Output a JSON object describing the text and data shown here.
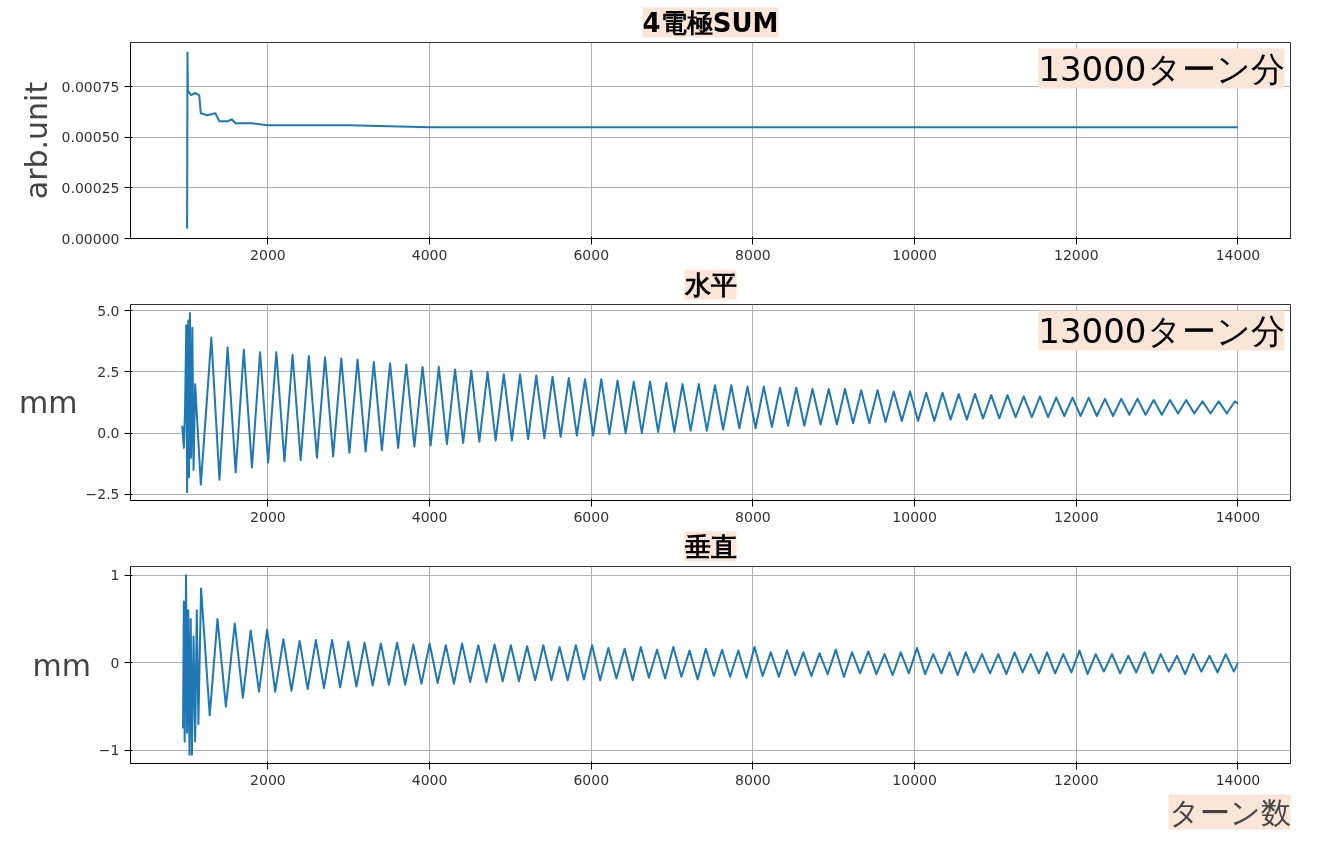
{
  "chart_data": [
    {
      "type": "line",
      "title": "4電極SUM",
      "ylabel": "arb.unit",
      "annotations": [
        "13000ターン分"
      ],
      "grid": true,
      "xlim": [
        300,
        14650
      ],
      "ylim": [
        0,
        0.00097
      ],
      "xticks": [
        2000,
        4000,
        6000,
        8000,
        10000,
        12000,
        14000
      ],
      "yticks": [
        {
          "value": 0,
          "label": "0.00000"
        },
        {
          "value": 0.00025,
          "label": "0.00025"
        },
        {
          "value": 0.0005,
          "label": "0.00050"
        },
        {
          "value": 0.00075,
          "label": "0.00075"
        }
      ],
      "series": [
        {
          "color": "#1f77b4",
          "x": [
            1000,
            1005,
            1010,
            1050,
            1100,
            1150,
            1170,
            1250,
            1350,
            1400,
            1500,
            1550,
            1600,
            1800,
            2000,
            3000,
            4000,
            6000,
            8000,
            10000,
            12000,
            14000
          ],
          "values": [
            5e-05,
            0.00092,
            0.00073,
            0.00071,
            0.00072,
            0.00071,
            0.00062,
            0.00061,
            0.00062,
            0.00058,
            0.00058,
            0.00059,
            0.00057,
            0.00057,
            0.00056,
            0.00056,
            0.00055,
            0.00055,
            0.00055,
            0.00055,
            0.00055,
            0.00055
          ]
        }
      ]
    },
    {
      "type": "line",
      "title": "水平",
      "ylabel": "mm",
      "annotations": [
        "13000ターン分"
      ],
      "grid": true,
      "xlim": [
        300,
        14650
      ],
      "ylim": [
        -2.75,
        5.25
      ],
      "xticks": [
        2000,
        4000,
        6000,
        8000,
        10000,
        12000,
        14000
      ],
      "yticks": [
        {
          "value": -2.5,
          "label": "−2.5"
        },
        {
          "value": 0,
          "label": "0.0"
        },
        {
          "value": 2.5,
          "label": "2.5"
        },
        {
          "value": 5,
          "label": "5.0"
        }
      ],
      "series": [
        {
          "color": "#1f77b4",
          "x": [
            940,
            960,
            975,
            990,
            1000,
            1015,
            1025,
            1035,
            1050,
            1065,
            1080,
            1100,
            1170,
            1300,
            1400,
            1501,
            1601,
            1702,
            1802,
            1903,
            2003,
            2104,
            2204,
            2305,
            2405,
            2506,
            2606,
            2707,
            2807,
            2908,
            3008,
            3109,
            3209,
            3310,
            3410,
            3511,
            3611,
            3712,
            3812,
            3913,
            4013,
            4114,
            4214,
            4315,
            4415,
            4516,
            4616,
            4717,
            4817,
            4918,
            5018,
            5119,
            5219,
            5320,
            5420,
            5521,
            5621,
            5722,
            5822,
            5923,
            6023,
            6124,
            6224,
            6325,
            6425,
            6526,
            6626,
            6727,
            6827,
            6928,
            7028,
            7129,
            7229,
            7330,
            7430,
            7531,
            7631,
            7732,
            7832,
            7933,
            8033,
            8134,
            8234,
            8335,
            8435,
            8536,
            8636,
            8737,
            8837,
            8938,
            9038,
            9139,
            9239,
            9340,
            9440,
            9541,
            9641,
            9742,
            9842,
            9943,
            10043,
            10144,
            10244,
            10345,
            10445,
            10546,
            10646,
            10747,
            10847,
            10948,
            11048,
            11149,
            11249,
            11350,
            11450,
            11551,
            11651,
            11752,
            11852,
            11953,
            12053,
            12154,
            12254,
            12355,
            12455,
            12556,
            12656,
            12757,
            12857,
            12958,
            13058,
            13159,
            13259,
            13360,
            13460,
            13561,
            13661,
            13762,
            13862,
            13963,
            14000
          ],
          "values": [
            0.3,
            -0.6,
            1.0,
            4.4,
            -2.4,
            4.6,
            -1.8,
            4.9,
            -1.0,
            4.3,
            -1.5,
            2.0,
            -2.1,
            3.9,
            -1.9,
            3.5,
            -1.6,
            3.4,
            -1.4,
            3.3,
            -1.2,
            3.3,
            -1.15,
            3.2,
            -1.1,
            3.15,
            -1.0,
            3.1,
            -0.95,
            3.05,
            -0.8,
            3.0,
            -0.75,
            2.9,
            -0.7,
            2.85,
            -0.6,
            2.8,
            -0.55,
            2.7,
            -0.5,
            2.7,
            -0.45,
            2.6,
            -0.4,
            2.55,
            -0.35,
            2.5,
            -0.3,
            2.4,
            -0.3,
            2.4,
            -0.25,
            2.35,
            -0.2,
            2.3,
            -0.15,
            2.25,
            -0.1,
            2.2,
            -0.1,
            2.2,
            -0.05,
            2.15,
            0.0,
            2.1,
            0.0,
            2.1,
            0.05,
            2.05,
            0.05,
            2.0,
            0.1,
            2.0,
            0.1,
            1.95,
            0.15,
            1.95,
            0.2,
            1.9,
            0.2,
            1.9,
            0.25,
            1.85,
            0.3,
            1.85,
            0.3,
            1.8,
            0.35,
            1.8,
            0.35,
            1.8,
            0.4,
            1.75,
            0.4,
            1.75,
            0.45,
            1.7,
            0.5,
            1.7,
            0.5,
            1.65,
            0.5,
            1.65,
            0.55,
            1.6,
            0.55,
            1.6,
            0.6,
            1.55,
            0.6,
            1.55,
            0.65,
            1.5,
            0.65,
            1.5,
            0.65,
            1.45,
            0.7,
            1.45,
            0.7,
            1.45,
            0.7,
            1.4,
            0.7,
            1.4,
            0.75,
            1.4,
            0.75,
            1.35,
            0.75,
            1.35,
            0.8,
            1.35,
            0.8,
            1.3,
            0.8,
            1.3,
            0.8,
            1.3,
            1.2
          ]
        }
      ]
    },
    {
      "type": "line",
      "title": "垂直",
      "ylabel": "mm",
      "xlabel": "ターン数",
      "grid": true,
      "xlim": [
        300,
        14650
      ],
      "ylim": [
        -1.15,
        1.1
      ],
      "xticks": [
        2000,
        4000,
        6000,
        8000,
        10000,
        12000,
        14000
      ],
      "yticks": [
        {
          "value": -1,
          "label": "−1"
        },
        {
          "value": 0,
          "label": "0"
        },
        {
          "value": 1,
          "label": "1"
        }
      ],
      "series": [
        {
          "color": "#1f77b4",
          "x": [
            950,
            960,
            970,
            987,
            1000,
            1015,
            1030,
            1045,
            1060,
            1080,
            1100,
            1120,
            1140,
            1173,
            1280,
            1376,
            1480,
            1590,
            1690,
            1787,
            1890,
            1990,
            2090,
            2191,
            2291,
            2392,
            2492,
            2593,
            2693,
            2794,
            2894,
            2995,
            3095,
            3196,
            3296,
            3397,
            3497,
            3598,
            3698,
            3799,
            3899,
            4000,
            4100,
            4201,
            4301,
            4402,
            4502,
            4603,
            4703,
            4804,
            4904,
            5005,
            5105,
            5206,
            5306,
            5407,
            5507,
            5608,
            5708,
            5809,
            5909,
            6010,
            6110,
            6211,
            6311,
            6412,
            6512,
            6613,
            6713,
            6814,
            6914,
            7015,
            7115,
            7216,
            7316,
            7417,
            7517,
            7618,
            7718,
            7819,
            7919,
            8020,
            8120,
            8221,
            8321,
            8422,
            8522,
            8623,
            8723,
            8824,
            8924,
            9025,
            9125,
            9226,
            9326,
            9427,
            9527,
            9628,
            9728,
            9829,
            9929,
            10030,
            10130,
            10231,
            10331,
            10432,
            10532,
            10633,
            10733,
            10834,
            10934,
            11035,
            11135,
            11236,
            11336,
            11437,
            11537,
            11638,
            11738,
            11839,
            11939,
            12040,
            12140,
            12241,
            12341,
            12442,
            12542,
            12643,
            12743,
            12844,
            12944,
            13045,
            13145,
            13246,
            13346,
            13447,
            13547,
            13648,
            13748,
            13849,
            13949,
            14000
          ],
          "values": [
            -0.75,
            0.7,
            -0.9,
            1.0,
            -0.8,
            0.6,
            -1.05,
            0.5,
            -1.05,
            0.3,
            -0.9,
            0.6,
            -0.7,
            0.85,
            -0.6,
            0.5,
            -0.5,
            0.45,
            -0.4,
            0.37,
            -0.33,
            0.38,
            -0.33,
            0.27,
            -0.32,
            0.25,
            -0.3,
            0.26,
            -0.29,
            0.26,
            -0.28,
            0.24,
            -0.27,
            0.23,
            -0.26,
            0.22,
            -0.25,
            0.23,
            -0.25,
            0.21,
            -0.24,
            0.22,
            -0.23,
            0.2,
            -0.24,
            0.22,
            -0.22,
            0.2,
            -0.22,
            0.21,
            -0.21,
            0.2,
            -0.21,
            0.19,
            -0.2,
            0.2,
            -0.2,
            0.18,
            -0.2,
            0.2,
            -0.19,
            0.2,
            -0.2,
            0.17,
            -0.18,
            0.16,
            -0.2,
            0.18,
            -0.17,
            0.15,
            -0.18,
            0.18,
            -0.16,
            0.14,
            -0.19,
            0.16,
            -0.15,
            0.15,
            -0.16,
            0.14,
            -0.17,
            0.18,
            -0.15,
            0.12,
            -0.16,
            0.14,
            -0.14,
            0.12,
            -0.15,
            0.11,
            -0.13,
            0.15,
            -0.16,
            0.12,
            -0.12,
            0.13,
            -0.13,
            0.1,
            -0.14,
            0.12,
            -0.12,
            0.17,
            -0.13,
            0.1,
            -0.12,
            0.12,
            -0.14,
            0.12,
            -0.11,
            0.1,
            -0.12,
            0.1,
            -0.13,
            0.12,
            -0.11,
            0.1,
            -0.12,
            0.12,
            -0.12,
            0.1,
            -0.11,
            0.14,
            -0.13,
            0.1,
            -0.1,
            0.1,
            -0.12,
            0.08,
            -0.11,
            0.12,
            -0.12,
            0.1,
            -0.1,
            0.08,
            -0.13,
            0.1,
            -0.1,
            0.08,
            -0.11,
            0.1,
            -0.1,
            0.0
          ]
        }
      ]
    }
  ]
}
